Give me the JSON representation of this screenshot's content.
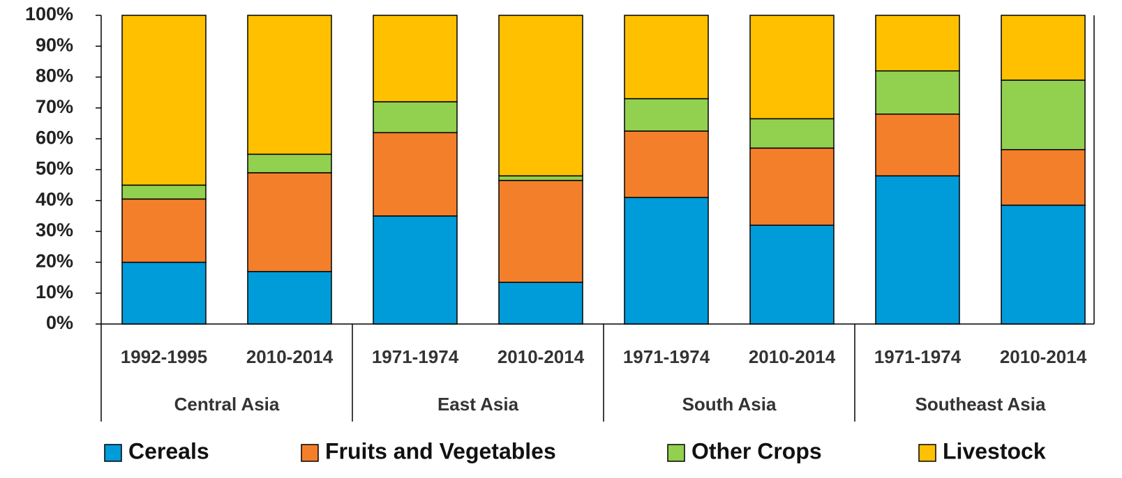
{
  "chart_data": {
    "type": "stacked_bar",
    "categories": [
      "1992-1995",
      "2010-2014",
      "1971-1974",
      "2010-2014",
      "1971-1974",
      "2010-2014",
      "1971-1974",
      "2010-2014"
    ],
    "groups": [
      "Central Asia",
      "East Asia",
      "South Asia",
      "Southeast Asia"
    ],
    "series": [
      {
        "name": "Cereals",
        "color": "#009bd9",
        "values": [
          20,
          17,
          35,
          13.5,
          41,
          32,
          48,
          38.5
        ]
      },
      {
        "name": "Fruits and Vegetables",
        "color": "#f47f2b",
        "values": [
          20.5,
          32,
          27,
          33,
          21.5,
          25,
          20,
          18
        ]
      },
      {
        "name": "Other Crops",
        "color": "#92d050",
        "values": [
          4.5,
          6,
          10,
          1.5,
          10.5,
          9.5,
          14,
          22.5
        ]
      },
      {
        "name": "Livestock",
        "color": "#ffc000",
        "values": [
          55,
          45,
          28,
          52,
          27,
          33.5,
          18,
          21
        ]
      }
    ],
    "ylim": [
      0,
      100
    ],
    "yticks": [
      {
        "value": 0,
        "label": "0%"
      },
      {
        "value": 10,
        "label": "10%"
      },
      {
        "value": 20,
        "label": "20%"
      },
      {
        "value": 30,
        "label": "30%"
      },
      {
        "value": 40,
        "label": "40%"
      },
      {
        "value": 50,
        "label": "50%"
      },
      {
        "value": 60,
        "label": "60%"
      },
      {
        "value": 70,
        "label": "70%"
      },
      {
        "value": 80,
        "label": "80%"
      },
      {
        "value": 90,
        "label": "90%"
      },
      {
        "value": 100,
        "label": "100%"
      }
    ],
    "legend": "bottom"
  }
}
